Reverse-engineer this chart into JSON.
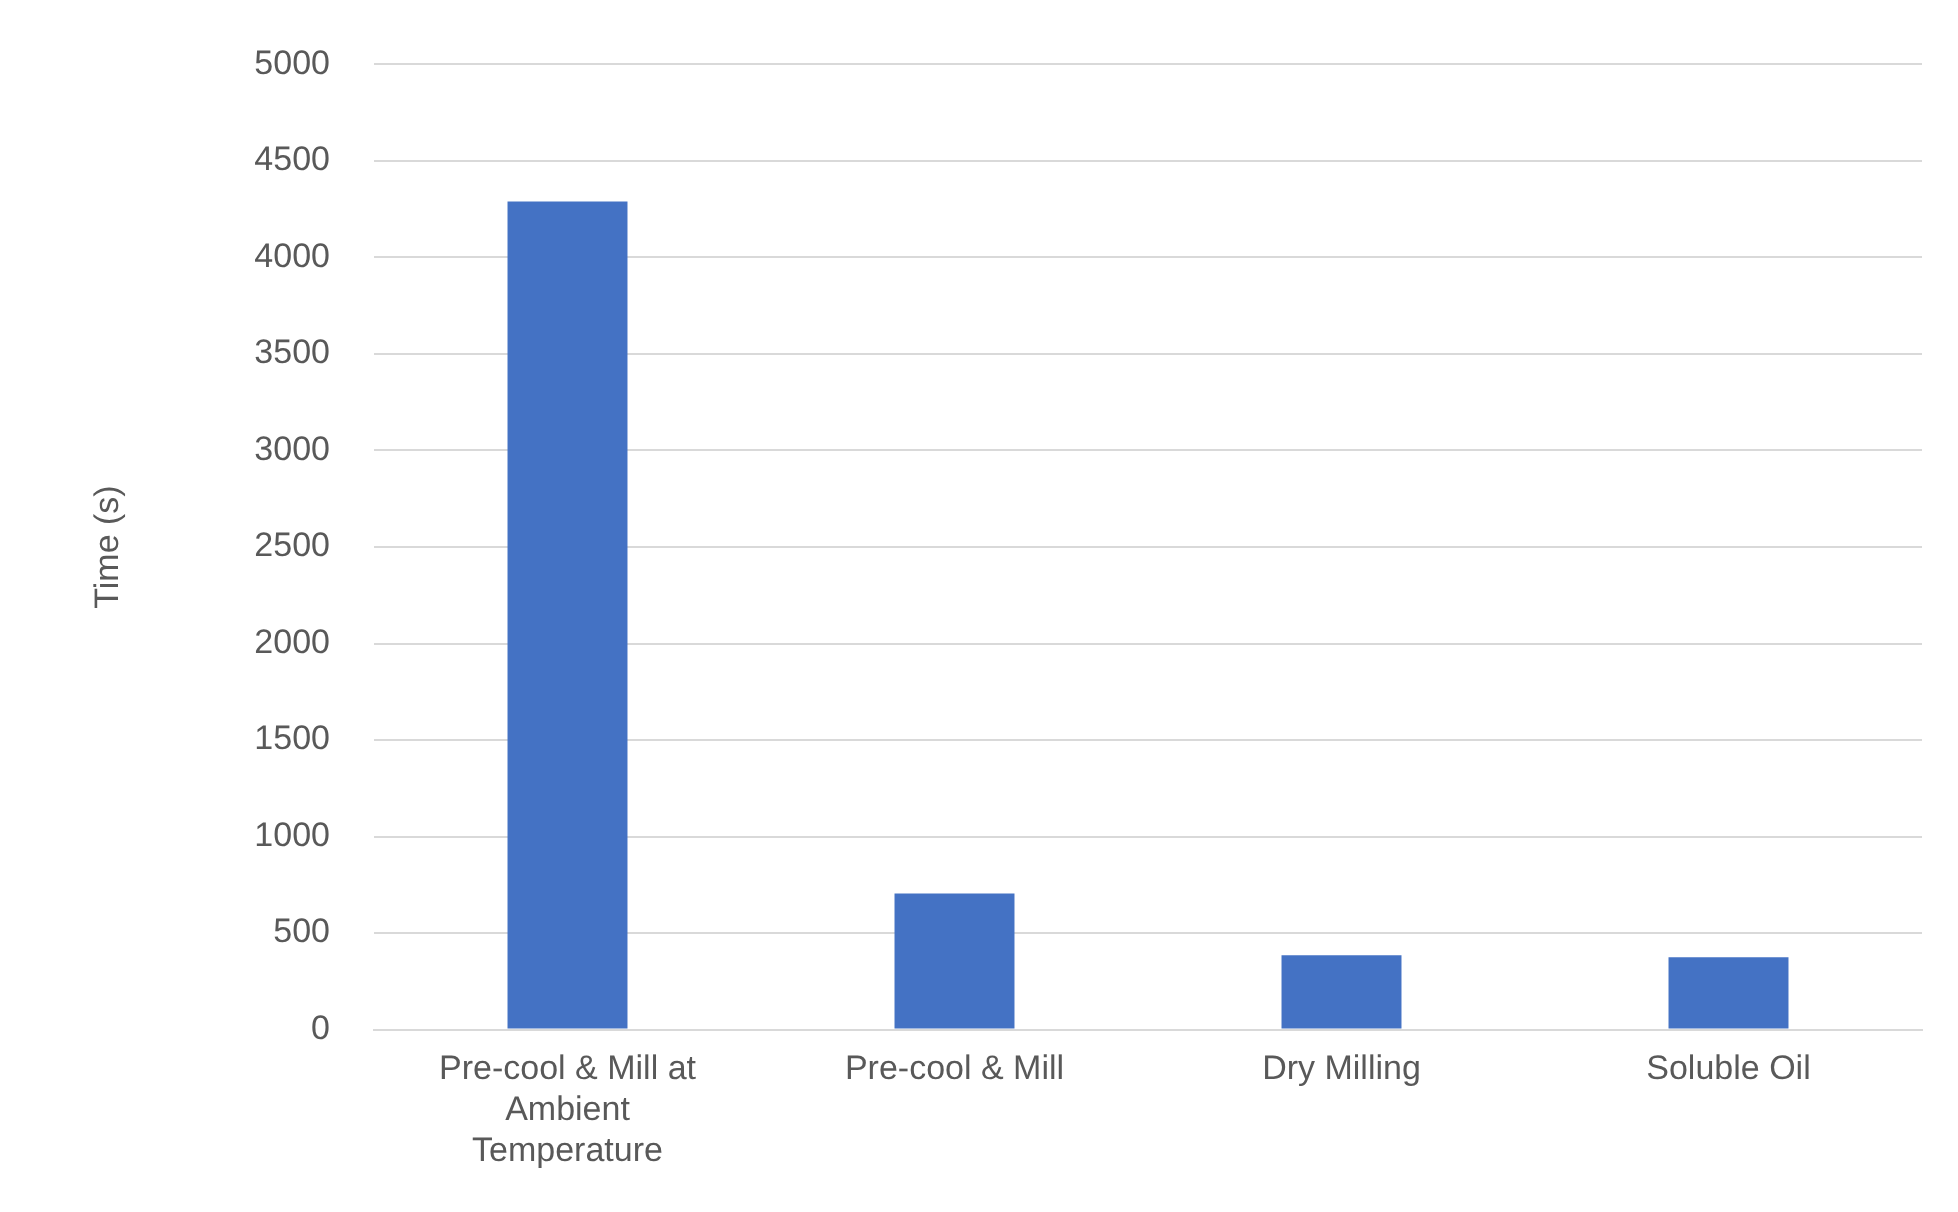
{
  "chart_data": {
    "type": "bar",
    "ylabel": "Time (s)",
    "categories": [
      "Pre-cool & Mill at Ambient Temperature",
      "Pre-cool & Mill",
      "Dry Milling",
      "Soluble Oil"
    ],
    "values": [
      4290,
      705,
      385,
      375
    ],
    "color": "#4472c4",
    "ylim": [
      0,
      5000
    ],
    "yticks": [
      0,
      500,
      1000,
      1500,
      2000,
      2500,
      3000,
      3500,
      4000,
      4500,
      5000
    ],
    "grid": "y",
    "legend": false
  }
}
